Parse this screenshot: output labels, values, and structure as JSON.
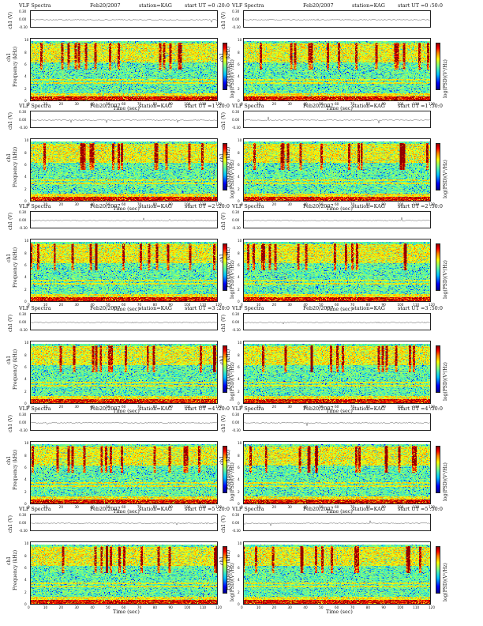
{
  "chart_data": [
    {
      "type": "heatmap",
      "header": {
        "left": "VLF Spectra",
        "date": "Feb20/2007",
        "station": "station=KAG",
        "start": "start UT =0 :20:0"
      },
      "ylabel_top": "ch1 (V)",
      "ylabel_main": "Frequency (kHz)",
      "ylabel_channel": "ch1",
      "xlabel": "Time (sec)",
      "xticks": [
        "0",
        "10",
        "20",
        "30",
        "40",
        "50",
        "60",
        "70",
        "80",
        "90",
        "100",
        "110",
        "120"
      ],
      "yticks": [
        "0",
        "2",
        "4",
        "6",
        "8",
        "10"
      ],
      "top_yticks": [
        "0.30",
        "0.00",
        "-0.30"
      ],
      "colorbar_label": "log(PSD)(V²/Hz)",
      "xlim": [
        0,
        120
      ],
      "ylim": [
        0,
        10
      ]
    },
    {
      "type": "heatmap",
      "header": {
        "left": "VLF Spectra",
        "date": "Feb20/2007",
        "station": "station=KAG",
        "start": "start UT =0 :50:0"
      },
      "ylabel_top": "ch1 (V)",
      "ylabel_main": "Frequency (kHz)",
      "ylabel_channel": "ch1",
      "xlabel": "Time (sec)",
      "xticks": [
        "0",
        "10",
        "20",
        "30",
        "40",
        "50",
        "60",
        "70",
        "80",
        "90",
        "100",
        "110",
        "120"
      ],
      "yticks": [
        "0",
        "2",
        "4",
        "6",
        "8",
        "10"
      ],
      "top_yticks": [
        "0.30",
        "0.00",
        "-0.30"
      ],
      "colorbar_label": "log(PSD)(V²/Hz)",
      "xlim": [
        0,
        120
      ],
      "ylim": [
        0,
        10
      ]
    },
    {
      "type": "heatmap",
      "header": {
        "left": "VLF Spectra",
        "date": "Feb20/2007",
        "station": "station=KAG",
        "start": "start UT =1 :20:0"
      },
      "ylabel_top": "ch1 (V)",
      "ylabel_main": "Frequency (kHz)",
      "ylabel_channel": "ch1",
      "xlabel": "Time (sec)",
      "xticks": [
        "0",
        "10",
        "20",
        "30",
        "40",
        "50",
        "60",
        "70",
        "80",
        "90",
        "100",
        "110",
        "120"
      ],
      "yticks": [
        "0",
        "2",
        "4",
        "6",
        "8",
        "10"
      ],
      "top_yticks": [
        "0.30",
        "0.00",
        "-0.30"
      ],
      "colorbar_label": "log(PSD)(V²/Hz)",
      "xlim": [
        0,
        120
      ],
      "ylim": [
        0,
        10
      ]
    },
    {
      "type": "heatmap",
      "header": {
        "left": "VLF Spectra",
        "date": "Feb20/2007",
        "station": "station=KAG",
        "start": "start UT =1 :50:0"
      },
      "ylabel_top": "ch1 (V)",
      "ylabel_main": "Frequency (kHz)",
      "ylabel_channel": "ch1",
      "xlabel": "Time (sec)",
      "xticks": [
        "0",
        "10",
        "20",
        "30",
        "40",
        "50",
        "60",
        "70",
        "80",
        "90",
        "100",
        "110",
        "120"
      ],
      "yticks": [
        "0",
        "2",
        "4",
        "6",
        "8",
        "10"
      ],
      "top_yticks": [
        "0.30",
        "0.00",
        "-0.30"
      ],
      "colorbar_label": "log(PSD)(V²/Hz)",
      "xlim": [
        0,
        120
      ],
      "ylim": [
        0,
        10
      ]
    },
    {
      "type": "heatmap",
      "header": {
        "left": "VLF Spectra",
        "date": "Feb20/2007",
        "station": "station=KAG",
        "start": "start UT =2 :20:0"
      },
      "ylabel_top": "ch1 (V)",
      "ylabel_main": "Frequency (kHz)",
      "ylabel_channel": "ch1",
      "xlabel": "Time (sec)",
      "xticks": [
        "0",
        "10",
        "20",
        "30",
        "40",
        "50",
        "60",
        "70",
        "80",
        "90",
        "100",
        "110",
        "120"
      ],
      "yticks": [
        "0",
        "2",
        "4",
        "6",
        "8",
        "10"
      ],
      "top_yticks": [
        "0.30",
        "0.00",
        "-0.30"
      ],
      "colorbar_label": "log(PSD)(V²/Hz)",
      "xlim": [
        0,
        120
      ],
      "ylim": [
        0,
        10
      ]
    },
    {
      "type": "heatmap",
      "header": {
        "left": "VLF Spectra",
        "date": "Feb20/2007",
        "station": "station=KAG",
        "start": "start UT =2 :50:0"
      },
      "ylabel_top": "ch1 (V)",
      "ylabel_main": "Frequency (kHz)",
      "ylabel_channel": "ch1",
      "xlabel": "Time (sec)",
      "xticks": [
        "0",
        "10",
        "20",
        "30",
        "40",
        "50",
        "60",
        "70",
        "80",
        "90",
        "100",
        "110",
        "120"
      ],
      "yticks": [
        "0",
        "2",
        "4",
        "6",
        "8",
        "10"
      ],
      "top_yticks": [
        "0.30",
        "0.00",
        "-0.30"
      ],
      "colorbar_label": "log(PSD)(V²/Hz)",
      "xlim": [
        0,
        120
      ],
      "ylim": [
        0,
        10
      ]
    },
    {
      "type": "heatmap",
      "header": {
        "left": "VLF Spectra",
        "date": "Feb20/2007",
        "station": "station=KAG",
        "start": "start UT =3 :20:0"
      },
      "ylabel_top": "ch1 (V)",
      "ylabel_main": "Frequency (kHz)",
      "ylabel_channel": "ch1",
      "xlabel": "Time (sec)",
      "xticks": [
        "0",
        "10",
        "20",
        "30",
        "40",
        "50",
        "60",
        "70",
        "80",
        "90",
        "100",
        "110",
        "120"
      ],
      "yticks": [
        "0",
        "2",
        "4",
        "6",
        "8",
        "10"
      ],
      "top_yticks": [
        "0.30",
        "0.00",
        "-0.30"
      ],
      "colorbar_label": "log(PSD)(V²/Hz)",
      "xlim": [
        0,
        120
      ],
      "ylim": [
        0,
        10
      ]
    },
    {
      "type": "heatmap",
      "header": {
        "left": "VLF Spectra",
        "date": "Feb20/2007",
        "station": "station=KAG",
        "start": "start UT =3 :50:0"
      },
      "ylabel_top": "ch1 (V)",
      "ylabel_main": "Frequency (kHz)",
      "ylabel_channel": "ch1",
      "xlabel": "Time (sec)",
      "xticks": [
        "0",
        "10",
        "20",
        "30",
        "40",
        "50",
        "60",
        "70",
        "80",
        "90",
        "100",
        "110",
        "120"
      ],
      "yticks": [
        "0",
        "2",
        "4",
        "6",
        "8",
        "10"
      ],
      "top_yticks": [
        "0.30",
        "0.00",
        "-0.30"
      ],
      "colorbar_label": "log(PSD)(V²/Hz)",
      "xlim": [
        0,
        120
      ],
      "ylim": [
        0,
        10
      ]
    },
    {
      "type": "heatmap",
      "header": {
        "left": "VLF Spectra",
        "date": "Feb20/2007",
        "station": "station=KAG",
        "start": "start UT =4 :20:0"
      },
      "ylabel_top": "ch1 (V)",
      "ylabel_main": "Frequency (kHz)",
      "ylabel_channel": "ch1",
      "xlabel": "Time (sec)",
      "xticks": [
        "0",
        "10",
        "20",
        "30",
        "40",
        "50",
        "60",
        "70",
        "80",
        "90",
        "100",
        "110",
        "120"
      ],
      "yticks": [
        "0",
        "2",
        "4",
        "6",
        "8",
        "10"
      ],
      "top_yticks": [
        "0.30",
        "0.00",
        "-0.30"
      ],
      "colorbar_label": "log(PSD)(V²/Hz)",
      "xlim": [
        0,
        120
      ],
      "ylim": [
        0,
        10
      ]
    },
    {
      "type": "heatmap",
      "header": {
        "left": "VLF Spectra",
        "date": "Feb20/2007",
        "station": "station=KAG",
        "start": "start UT =4 :50:0"
      },
      "ylabel_top": "ch1 (V)",
      "ylabel_main": "Frequency (kHz)",
      "ylabel_channel": "ch1",
      "xlabel": "Time (sec)",
      "xticks": [
        "0",
        "10",
        "20",
        "30",
        "40",
        "50",
        "60",
        "70",
        "80",
        "90",
        "100",
        "110",
        "120"
      ],
      "yticks": [
        "0",
        "2",
        "4",
        "6",
        "8",
        "10"
      ],
      "top_yticks": [
        "0.30",
        "0.00",
        "-0.30"
      ],
      "colorbar_label": "log(PSD)(V²/Hz)",
      "xlim": [
        0,
        120
      ],
      "ylim": [
        0,
        10
      ]
    },
    {
      "type": "heatmap",
      "header": {
        "left": "VLF Spectra",
        "date": "Feb20/2007",
        "station": "station=KAG",
        "start": "start UT =5 :20:0"
      },
      "ylabel_top": "ch1 (V)",
      "ylabel_main": "Frequency (kHz)",
      "ylabel_channel": "ch1",
      "xlabel": "Time (sec)",
      "xticks": [
        "0",
        "10",
        "20",
        "30",
        "40",
        "50",
        "60",
        "70",
        "80",
        "90",
        "100",
        "110",
        "120"
      ],
      "yticks": [
        "0",
        "2",
        "4",
        "6",
        "8",
        "10"
      ],
      "top_yticks": [
        "0.30",
        "0.00",
        "-0.30"
      ],
      "colorbar_label": "log(PSD)(V²/Hz)",
      "xlim": [
        0,
        120
      ],
      "ylim": [
        0,
        10
      ]
    },
    {
      "type": "heatmap",
      "header": {
        "left": "VLF Spectra",
        "date": "Feb20/2007",
        "station": "station=KAG",
        "start": "start UT =5 :50:0"
      },
      "ylabel_top": "ch1 (V)",
      "ylabel_main": "Frequency (kHz)",
      "ylabel_channel": "ch1",
      "xlabel": "Time (sec)",
      "xticks": [
        "0",
        "10",
        "20",
        "30",
        "40",
        "50",
        "60",
        "70",
        "80",
        "90",
        "100",
        "110",
        "120"
      ],
      "yticks": [
        "0",
        "2",
        "4",
        "6",
        "8",
        "10"
      ],
      "top_yticks": [
        "0.30",
        "0.00",
        "-0.30"
      ],
      "colorbar_label": "log(PSD)(V²/Hz)",
      "xlim": [
        0,
        120
      ],
      "ylim": [
        0,
        10
      ]
    }
  ]
}
